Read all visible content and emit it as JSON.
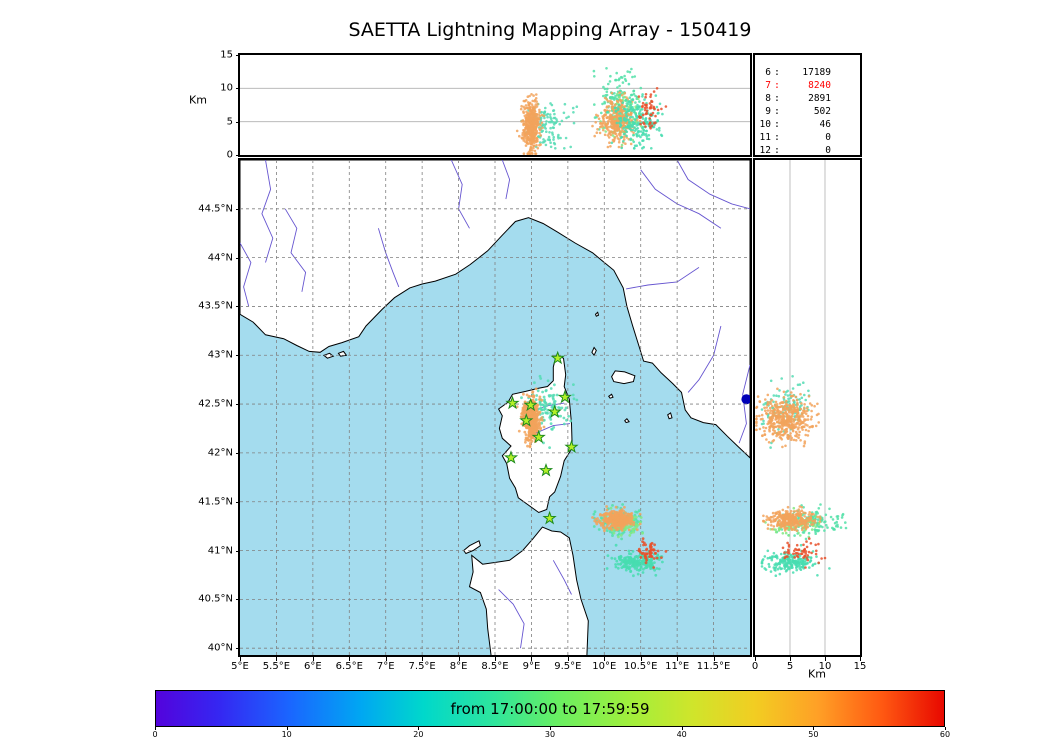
{
  "title": "SAETTA Lightning Mapping Array - 150419",
  "stats_panel": {
    "highlight_color": "#ff0000",
    "rows": [
      {
        "label": "6",
        "value": "17189",
        "highlight": false
      },
      {
        "label": "7",
        "value": "8240",
        "highlight": true
      },
      {
        "label": "8",
        "value": "2891",
        "highlight": false
      },
      {
        "label": "9",
        "value": "502",
        "highlight": false
      },
      {
        "label": "10",
        "value": "46",
        "highlight": false
      },
      {
        "label": "11",
        "value": "0",
        "highlight": false
      },
      {
        "label": "12",
        "value": "0",
        "highlight": false
      }
    ]
  },
  "colorbar": {
    "label": "from 17:00:00 to 17:59:59",
    "tick_labels": [
      "0",
      "10",
      "20",
      "30",
      "40",
      "50",
      "60"
    ],
    "tick_values": [
      0,
      10,
      20,
      30,
      40,
      50,
      60
    ],
    "min": 0,
    "max": 60
  },
  "map_colors": {
    "sea": "#a4dcee",
    "land": "#ffffff",
    "coast": "#000000",
    "river": "#6655d0",
    "lake": "#0000b8",
    "grid": "#808080",
    "star_fill": "#b4f028",
    "star_edge": "#1c8a1c"
  },
  "chart_data": {
    "type": "scatter",
    "title": "SAETTA Lightning Mapping Array - 150419",
    "panels": {
      "top": {
        "x": "longitude_deg_E",
        "x_range": [
          5.0,
          12.0
        ],
        "y": "altitude_km",
        "y_range": [
          0,
          15
        ],
        "y_tick_values": [
          15,
          10,
          5,
          0
        ],
        "y_tick_labels": [
          "15",
          "10",
          "5",
          "0"
        ],
        "y_label": "Km",
        "grid_km": [
          5,
          10
        ]
      },
      "map": {
        "lon_range": [
          5.0,
          12.0
        ],
        "lat_range": [
          39.93,
          45.0
        ],
        "lon_tick_values": [
          5,
          5.5,
          6,
          6.5,
          7,
          7.5,
          8,
          8.5,
          9,
          9.5,
          10,
          10.5,
          11,
          11.5
        ],
        "lon_tick_labels": [
          "5°E",
          "5.5°E",
          "6°E",
          "6.5°E",
          "7°E",
          "7.5°E",
          "8°E",
          "8.5°E",
          "9°E",
          "9.5°E",
          "10°E",
          "10.5°E",
          "11°E",
          "11.5°E"
        ],
        "lat_tick_values": [
          44.5,
          44,
          43.5,
          43,
          42.5,
          42,
          41.5,
          41,
          40.5,
          40
        ],
        "lat_tick_labels": [
          "44.5°N",
          "44°N",
          "43.5°N",
          "43°N",
          "42.5°N",
          "42°N",
          "41.5°N",
          "41°N",
          "40.5°N",
          "40°N"
        ]
      },
      "right": {
        "x": "altitude_km",
        "x_range": [
          0,
          15
        ],
        "x_tick_values": [
          0,
          5,
          10,
          15
        ],
        "x_tick_labels": [
          "0",
          "5",
          "10",
          "15"
        ],
        "x_label": "Km",
        "y": "latitude_deg_N",
        "grid_km": [
          5,
          10
        ]
      }
    },
    "stations": [
      [
        9.36,
        42.97
      ],
      [
        8.74,
        42.51
      ],
      [
        8.99,
        42.49
      ],
      [
        9.46,
        42.57
      ],
      [
        8.93,
        42.33
      ],
      [
        9.32,
        42.42
      ],
      [
        9.1,
        42.16
      ],
      [
        9.55,
        42.06
      ],
      [
        8.72,
        41.95
      ],
      [
        9.2,
        41.82
      ],
      [
        9.25,
        41.33
      ]
    ],
    "clusters": [
      {
        "name": "corsica-storm-cyan-fringe",
        "color": "#55dcb4",
        "count": 120,
        "lon_mean": 9.25,
        "lon_sd": 0.15,
        "lat_mean": 42.46,
        "lat_sd": 0.12,
        "alt_mean": 4.5,
        "alt_sd": 1.6,
        "alt_min": 1.0,
        "alt_max": 8.0
      },
      {
        "name": "corsica-storm-core-orange",
        "color": "#f2a35c",
        "count": 420,
        "lon_mean": 9.0,
        "lon_sd": 0.06,
        "lat_mean": 42.35,
        "lat_sd": 0.11,
        "alt_mean": 4.2,
        "alt_sd": 1.9,
        "alt_min": 0.2,
        "alt_max": 9.3
      },
      {
        "name": "sea-storm-anvil-cyan",
        "color": "#52e0a8",
        "count": 150,
        "lon_mean": 10.2,
        "lon_sd": 0.14,
        "lat_mean": 41.3,
        "lat_sd": 0.06,
        "alt_mean": 8.0,
        "alt_sd": 2.2,
        "alt_min": 2.0,
        "alt_max": 13.0
      },
      {
        "name": "sea-storm-mid-green",
        "color": "#82e982",
        "count": 90,
        "lon_mean": 10.25,
        "lon_sd": 0.12,
        "lat_mean": 41.28,
        "lat_sd": 0.05,
        "alt_mean": 6.0,
        "alt_sd": 2.0,
        "alt_min": 1.5,
        "alt_max": 11.0
      },
      {
        "name": "sea-storm-core-orange",
        "color": "#f2a35c",
        "count": 320,
        "lon_mean": 10.17,
        "lon_sd": 0.11,
        "lat_mean": 41.31,
        "lat_sd": 0.045,
        "alt_mean": 5.2,
        "alt_sd": 1.6,
        "alt_min": 1.2,
        "alt_max": 9.5
      },
      {
        "name": "south-storm-teal",
        "color": "#48ddb0",
        "count": 210,
        "lon_mean": 10.45,
        "lon_sd": 0.16,
        "lat_mean": 40.88,
        "lat_sd": 0.05,
        "alt_mean": 5.0,
        "alt_sd": 1.8,
        "alt_min": 1.0,
        "alt_max": 12.5
      },
      {
        "name": "south-storm-recent-red",
        "color": "#e8502a",
        "count": 55,
        "lon_mean": 10.63,
        "lon_sd": 0.08,
        "lat_mean": 41.0,
        "lat_sd": 0.07,
        "alt_mean": 7.0,
        "alt_sd": 1.5,
        "alt_min": 4.0,
        "alt_max": 10.0
      }
    ]
  }
}
